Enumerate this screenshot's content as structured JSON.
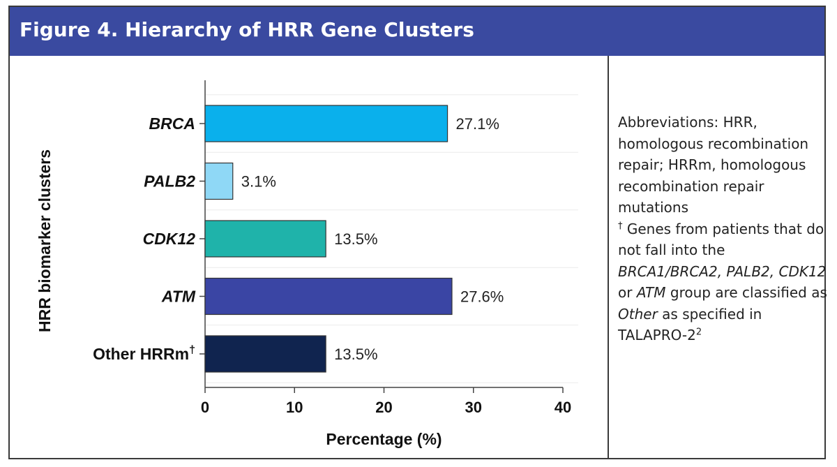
{
  "header": {
    "title": "Figure 4. Hierarchy of HRR Gene Clusters"
  },
  "notes": {
    "abbreviations": "Abbreviations: HRR, homologous recombination repair; HRRm, homologous recombination repair mutations",
    "dagger_mark": "†",
    "footnote_1": "Genes from patients that do not fall into the",
    "footnote_genes": "BRCA1/BRCA2, PALB2, CDK12",
    "footnote_or": "or",
    "footnote_atm": "ATM",
    "footnote_2": "group are classified as",
    "footnote_other": "Other",
    "footnote_3": "as specified in TALAPRO-2",
    "footnote_ref": "2"
  },
  "chart_data": {
    "type": "bar",
    "orientation": "horizontal",
    "categories": [
      "BRCA",
      "PALB2",
      "CDK12",
      "ATM",
      "Other HRRm"
    ],
    "category_italic": [
      true,
      true,
      true,
      true,
      false
    ],
    "category_superscripts": [
      "",
      "",
      "",
      "",
      "†"
    ],
    "values": [
      27.1,
      3.1,
      13.5,
      27.6,
      13.5
    ],
    "value_labels": [
      "27.1%",
      "3.1%",
      "13.5%",
      "27.6%",
      "13.5%"
    ],
    "colors": [
      "#0ab0ec",
      "#8fd8f6",
      "#1fb3aa",
      "#3a45a4",
      "#10244f"
    ],
    "xlabel": "Percentage (%)",
    "ylabel": "HRR biomarker clusters",
    "xlim": [
      0,
      40
    ],
    "xticks": [
      0,
      10,
      20,
      30,
      40
    ],
    "grid": true,
    "legend": "none"
  }
}
